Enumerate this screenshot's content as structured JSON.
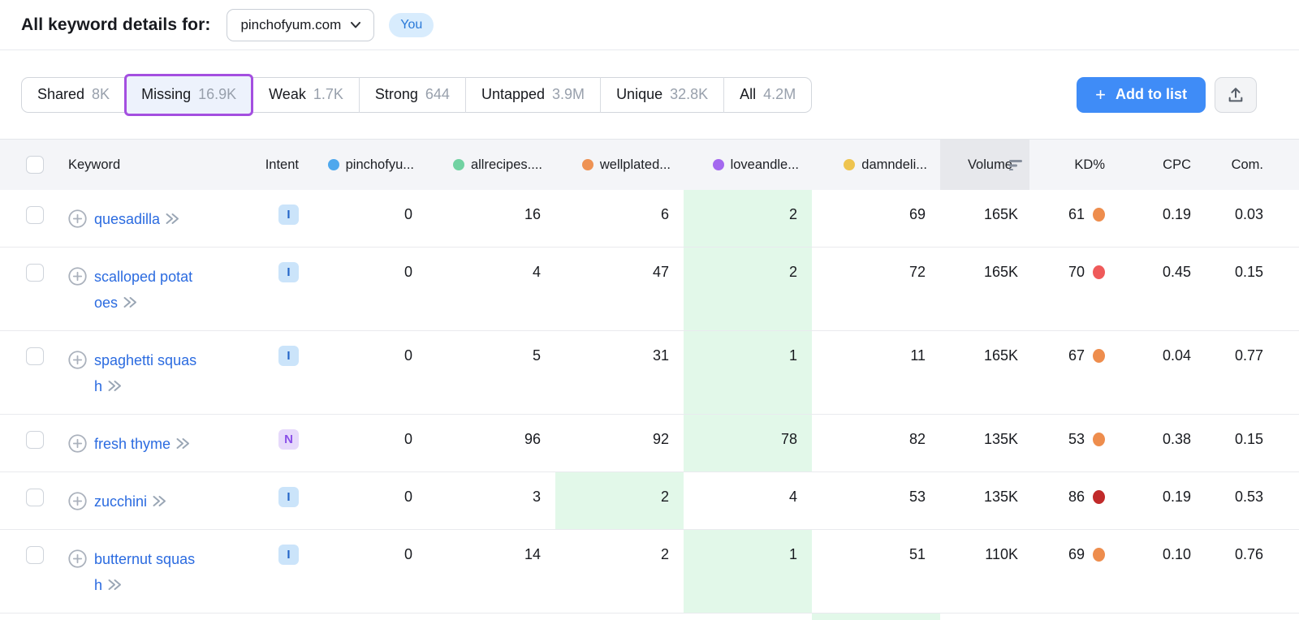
{
  "header": {
    "title": "All keyword details for:",
    "domain_selector": "pinchofyum.com",
    "you_badge": "You"
  },
  "tabs": [
    {
      "label": "Shared",
      "count": "8K",
      "selected": false
    },
    {
      "label": "Missing",
      "count": "16.9K",
      "selected": true
    },
    {
      "label": "Weak",
      "count": "1.7K",
      "selected": false
    },
    {
      "label": "Strong",
      "count": "644",
      "selected": false
    },
    {
      "label": "Untapped",
      "count": "3.9M",
      "selected": false
    },
    {
      "label": "Unique",
      "count": "32.8K",
      "selected": false
    },
    {
      "label": "All",
      "count": "4.2M",
      "selected": false
    }
  ],
  "actions": {
    "add_to_list_label": "Add to list",
    "plus_glyph": "+",
    "export_icon": "upload-icon"
  },
  "colors": {
    "accent_blue": "#3f8cf7",
    "link_blue": "#2b6be0",
    "selected_tab_border": "#a44fe0",
    "highlight_green": "#e2f8e9",
    "sorted_column_bg": "#e7e8ec"
  },
  "table": {
    "columns": {
      "keyword": "Keyword",
      "intent": "Intent",
      "domains": [
        {
          "label": "pinchofyu...",
          "color": "#4fa8ed"
        },
        {
          "label": "allrecipes....",
          "color": "#71d2a2"
        },
        {
          "label": "wellplated...",
          "color": "#ee9254"
        },
        {
          "label": "loveandle...",
          "color": "#a468ef"
        },
        {
          "label": "damndeli...",
          "color": "#eec44f"
        }
      ],
      "volume": "Volume",
      "volume_sort_icon": "sort-desc-icon",
      "kd": "KD%",
      "cpc": "CPC",
      "com": "Com."
    },
    "rows": [
      {
        "keyword": "quesadilla",
        "intent": "I",
        "positions": [
          "0",
          "16",
          "6",
          "2",
          "69"
        ],
        "highlight_index": 3,
        "volume": "165K",
        "kd": "61",
        "kd_color": "#ee8d4d",
        "cpc": "0.19",
        "com": "0.03"
      },
      {
        "keyword": "scalloped potatoes",
        "intent": "I",
        "positions": [
          "0",
          "4",
          "47",
          "2",
          "72"
        ],
        "highlight_index": 3,
        "volume": "165K",
        "kd": "70",
        "kd_color": "#ef5a5a",
        "cpc": "0.45",
        "com": "0.15"
      },
      {
        "keyword": "spaghetti squash",
        "intent": "I",
        "positions": [
          "0",
          "5",
          "31",
          "1",
          "11"
        ],
        "highlight_index": 3,
        "volume": "165K",
        "kd": "67",
        "kd_color": "#ee8d4d",
        "cpc": "0.04",
        "com": "0.77"
      },
      {
        "keyword": "fresh thyme",
        "intent": "N",
        "positions": [
          "0",
          "96",
          "92",
          "78",
          "82"
        ],
        "highlight_index": 3,
        "volume": "135K",
        "kd": "53",
        "kd_color": "#ee8d4d",
        "cpc": "0.38",
        "com": "0.15"
      },
      {
        "keyword": "zucchini",
        "intent": "I",
        "positions": [
          "0",
          "3",
          "2",
          "4",
          "53"
        ],
        "highlight_index": 2,
        "volume": "135K",
        "kd": "86",
        "kd_color": "#c12a2a",
        "cpc": "0.19",
        "com": "0.53"
      },
      {
        "keyword": "butternut squash",
        "intent": "I",
        "positions": [
          "0",
          "14",
          "2",
          "1",
          "51"
        ],
        "highlight_index": 3,
        "volume": "110K",
        "kd": "69",
        "kd_color": "#ee8d4d",
        "cpc": "0.10",
        "com": "0.76"
      }
    ],
    "partial_next_row": {
      "highlight_index": 3
    }
  }
}
